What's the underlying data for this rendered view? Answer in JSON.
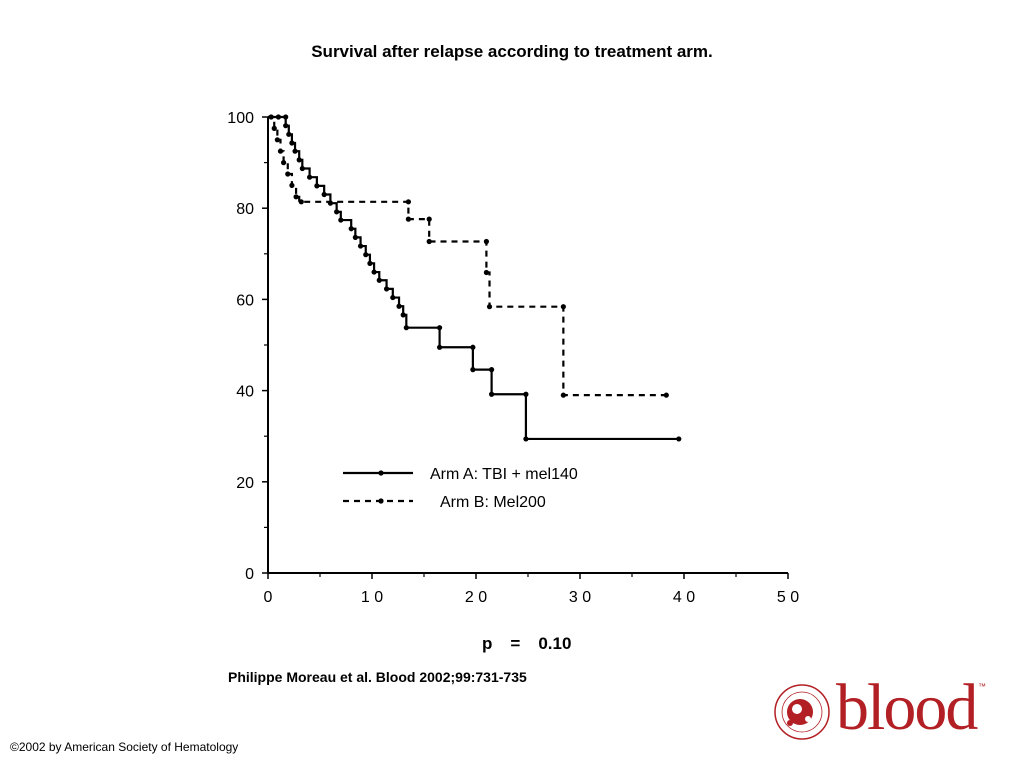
{
  "slide": {
    "title": "Survival after relapse according to treatment arm.",
    "citation": "Philippe Moreau et al. Blood 2002;99:731-735",
    "copyright": "©2002 by American Society of Hematology",
    "logo_text": "blood",
    "logo_tm": "™",
    "p_label": "p",
    "p_eq": "=",
    "p_value": "0.10"
  },
  "chart_data": {
    "type": "line",
    "subtype": "kaplan-meier step",
    "xlim": [
      0,
      50
    ],
    "ylim": [
      0,
      100
    ],
    "x_ticks": [
      0,
      10,
      20,
      30,
      40,
      50
    ],
    "x_tick_labels": [
      "0",
      "1 0",
      "2 0",
      "3 0",
      "4 0",
      "5 0"
    ],
    "y_ticks": [
      0,
      20,
      40,
      60,
      80,
      100
    ],
    "y_tick_labels": [
      "0",
      "20",
      "40",
      "60",
      "80",
      "100"
    ],
    "legend_position": "bottom-center",
    "series": [
      {
        "name": "Arm A: TBI + mel140",
        "style": "solid",
        "color": "#000000",
        "steps": [
          [
            0,
            100
          ],
          [
            1.7,
            98.1
          ],
          [
            2.0,
            96.2
          ],
          [
            2.3,
            94.3
          ],
          [
            2.6,
            92.5
          ],
          [
            3.0,
            90.6
          ],
          [
            3.3,
            88.7
          ],
          [
            4.0,
            86.8
          ],
          [
            4.7,
            84.9
          ],
          [
            5.4,
            83.0
          ],
          [
            6.0,
            81.1
          ],
          [
            6.6,
            79.2
          ],
          [
            7.0,
            77.4
          ],
          [
            8.0,
            75.5
          ],
          [
            8.4,
            73.6
          ],
          [
            8.9,
            71.7
          ],
          [
            9.4,
            69.8
          ],
          [
            9.8,
            67.9
          ],
          [
            10.2,
            66.0
          ],
          [
            10.7,
            64.2
          ],
          [
            11.4,
            62.3
          ],
          [
            12.0,
            60.4
          ],
          [
            12.6,
            58.5
          ],
          [
            13.0,
            56.6
          ],
          [
            13.3,
            53.8
          ],
          [
            16.5,
            49.5
          ],
          [
            19.7,
            44.6
          ],
          [
            21.5,
            39.2
          ],
          [
            24.8,
            29.4
          ],
          [
            39.5,
            29.4
          ]
        ],
        "markers": [
          [
            1.0,
            100
          ],
          [
            1.7,
            100
          ],
          [
            1.7,
            98.1
          ],
          [
            2.0,
            96.2
          ],
          [
            2.3,
            94.3
          ],
          [
            2.6,
            92.5
          ],
          [
            3.0,
            90.6
          ],
          [
            3.3,
            88.7
          ],
          [
            4.0,
            86.8
          ],
          [
            4.7,
            84.9
          ],
          [
            5.4,
            83.0
          ],
          [
            6.0,
            81.1
          ],
          [
            6.6,
            79.2
          ],
          [
            7.0,
            77.4
          ],
          [
            8.0,
            75.5
          ],
          [
            8.4,
            73.6
          ],
          [
            8.9,
            71.7
          ],
          [
            9.4,
            69.8
          ],
          [
            9.8,
            67.9
          ],
          [
            10.2,
            66.0
          ],
          [
            10.7,
            64.2
          ],
          [
            11.4,
            62.3
          ],
          [
            12.0,
            60.4
          ],
          [
            12.6,
            58.5
          ],
          [
            13.0,
            56.6
          ],
          [
            13.3,
            53.8
          ],
          [
            16.5,
            53.8
          ],
          [
            16.5,
            49.5
          ],
          [
            19.7,
            49.5
          ],
          [
            19.7,
            44.6
          ],
          [
            21.5,
            44.6
          ],
          [
            21.5,
            39.2
          ],
          [
            24.8,
            39.2
          ],
          [
            24.8,
            29.4
          ],
          [
            39.5,
            29.4
          ]
        ]
      },
      {
        "name": "Arm B: Mel200",
        "style": "dashed",
        "color": "#000000",
        "steps": [
          [
            0,
            100
          ],
          [
            0.6,
            97.5
          ],
          [
            0.9,
            95.0
          ],
          [
            1.2,
            92.5
          ],
          [
            1.5,
            90.0
          ],
          [
            1.9,
            87.5
          ],
          [
            2.3,
            85.0
          ],
          [
            2.7,
            82.5
          ],
          [
            3.0,
            81.4
          ],
          [
            13.5,
            77.6
          ],
          [
            15.5,
            72.7
          ],
          [
            21.0,
            65.9
          ],
          [
            21.3,
            58.4
          ],
          [
            28.4,
            39.0
          ],
          [
            38.3,
            39.0
          ]
        ],
        "markers": [
          [
            0.3,
            100
          ],
          [
            0.6,
            97.5
          ],
          [
            0.9,
            95.0
          ],
          [
            1.2,
            92.5
          ],
          [
            1.5,
            90.0
          ],
          [
            1.9,
            87.5
          ],
          [
            2.3,
            85.0
          ],
          [
            2.7,
            82.5
          ],
          [
            3.2,
            81.4
          ],
          [
            13.5,
            81.4
          ],
          [
            13.5,
            77.6
          ],
          [
            15.5,
            77.6
          ],
          [
            15.5,
            72.7
          ],
          [
            21.0,
            72.7
          ],
          [
            21.0,
            65.9
          ],
          [
            21.3,
            58.4
          ],
          [
            28.4,
            58.4
          ],
          [
            28.4,
            39.0
          ],
          [
            38.3,
            39.0
          ]
        ]
      }
    ]
  }
}
